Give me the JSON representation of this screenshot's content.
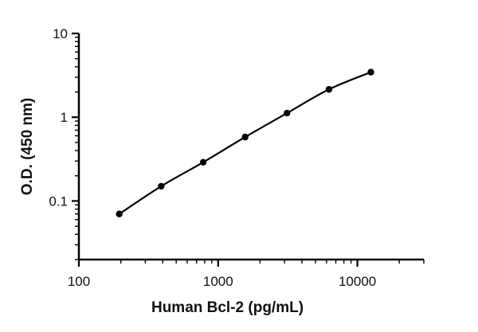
{
  "chart_data": {
    "type": "scatter",
    "title": "",
    "xlabel": "Human Bcl-2 (pg/mL)",
    "ylabel": "O.D. (450 nm)",
    "x_scale": "log",
    "y_scale": "log",
    "xlim": [
      100,
      30000
    ],
    "ylim": [
      0.02,
      10
    ],
    "x_ticks": [
      100,
      1000,
      10000
    ],
    "x_tick_labels": [
      "100",
      "1000",
      "10000"
    ],
    "y_ticks": [
      0.1,
      1,
      10
    ],
    "y_tick_labels": [
      "0.1",
      "1",
      "10"
    ],
    "grid": false,
    "legend": "none",
    "series": [
      {
        "x": [
          195,
          390,
          781,
          1563,
          3125,
          6250,
          12500
        ],
        "y": [
          0.07,
          0.15,
          0.29,
          0.58,
          1.12,
          2.15,
          3.45
        ],
        "color": "#000000",
        "fit_curve": true
      }
    ]
  }
}
